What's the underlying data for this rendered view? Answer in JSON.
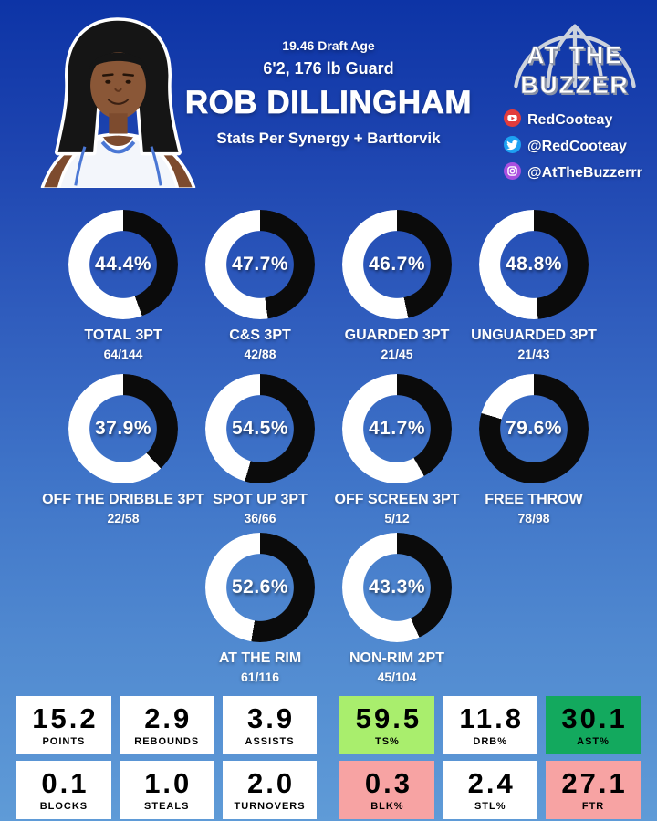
{
  "header": {
    "draft_age": "19.46 Draft Age",
    "size_position": "6'2, 176 lb Guard",
    "player_name": "ROB DILLINGHAM",
    "stats_source": "Stats Per Synergy + Barttorvik",
    "logo": {
      "line1": "AT THE",
      "line2": "BUZZER"
    },
    "socials": [
      {
        "icon": "youtube-icon",
        "handle": "RedCooteay",
        "color": "#e23c3c"
      },
      {
        "icon": "twitter-icon",
        "handle": "@RedCooteay",
        "color": "#1da1f2"
      },
      {
        "icon": "instagram-icon",
        "handle": "@AtTheBuzzerrr",
        "color": "#a950e0"
      }
    ]
  },
  "colors": {
    "donut_fill": "#0b0b0b",
    "donut_rest": "#ffffff",
    "stat_white": "#ffffff",
    "stat_green_light": "#a9ee6d",
    "stat_green": "#13a95e",
    "stat_pink": "#f7a3a3"
  },
  "chart_data": {
    "type": "donut-grid-and-table",
    "donuts": [
      {
        "type": "pie",
        "label": "TOTAL 3PT",
        "pct": 44.4,
        "pct_label": "44.4%",
        "fraction": "64/144"
      },
      {
        "type": "pie",
        "label": "C&S 3PT",
        "pct": 47.7,
        "pct_label": "47.7%",
        "fraction": "42/88"
      },
      {
        "type": "pie",
        "label": "GUARDED 3PT",
        "pct": 46.7,
        "pct_label": "46.7%",
        "fraction": "21/45"
      },
      {
        "type": "pie",
        "label": "UNGUARDED 3PT",
        "pct": 48.8,
        "pct_label": "48.8%",
        "fraction": "21/43"
      },
      {
        "type": "pie",
        "label": "OFF THE DRIBBLE 3PT",
        "pct": 37.9,
        "pct_label": "37.9%",
        "fraction": "22/58"
      },
      {
        "type": "pie",
        "label": "SPOT UP 3PT",
        "pct": 54.5,
        "pct_label": "54.5%",
        "fraction": "36/66"
      },
      {
        "type": "pie",
        "label": "OFF SCREEN 3PT",
        "pct": 41.7,
        "pct_label": "41.7%",
        "fraction": "5/12"
      },
      {
        "type": "pie",
        "label": "FREE THROW",
        "pct": 79.6,
        "pct_label": "79.6%",
        "fraction": "78/98"
      },
      {
        "type": "pie",
        "label": "AT THE RIM",
        "pct": 52.6,
        "pct_label": "52.6%",
        "fraction": "61/116"
      },
      {
        "type": "pie",
        "label": "NON-RIM 2PT",
        "pct": 43.3,
        "pct_label": "43.3%",
        "fraction": "45/104"
      }
    ],
    "stats": [
      {
        "value": "15.2",
        "label": "POINTS",
        "bg": "#ffffff"
      },
      {
        "value": "2.9",
        "label": "REBOUNDS",
        "bg": "#ffffff"
      },
      {
        "value": "3.9",
        "label": "ASSISTS",
        "bg": "#ffffff"
      },
      {
        "value": "59.5",
        "label": "TS%",
        "bg": "#a9ee6d"
      },
      {
        "value": "11.8",
        "label": "DRB%",
        "bg": "#ffffff"
      },
      {
        "value": "30.1",
        "label": "AST%",
        "bg": "#13a95e"
      },
      {
        "value": "0.1",
        "label": "BLOCKS",
        "bg": "#ffffff"
      },
      {
        "value": "1.0",
        "label": "STEALS",
        "bg": "#ffffff"
      },
      {
        "value": "2.0",
        "label": "TURNOVERS",
        "bg": "#ffffff"
      },
      {
        "value": "0.3",
        "label": "BLK%",
        "bg": "#f7a3a3"
      },
      {
        "value": "2.4",
        "label": "STL%",
        "bg": "#ffffff"
      },
      {
        "value": "27.1",
        "label": "FTR",
        "bg": "#f7a3a3"
      }
    ]
  }
}
